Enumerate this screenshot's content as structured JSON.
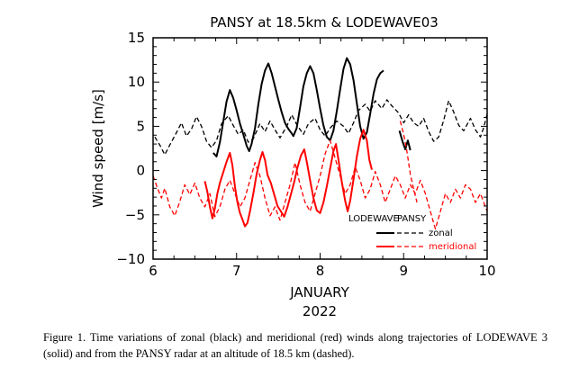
{
  "chart_data": {
    "type": "line",
    "title": "PANSY at 18.5km & LODEWAVE03",
    "xlabel": "JANUARY",
    "xlabel2": "2022",
    "ylabel": "Wind speed [m/s]",
    "xlim": [
      6,
      10
    ],
    "ylim": [
      -10,
      15
    ],
    "xticks": [
      6,
      7,
      8,
      9,
      10
    ],
    "yticks": [
      15,
      10,
      5,
      0,
      -5,
      -10
    ],
    "xtick_labels": [
      "6",
      "7",
      "8",
      "9",
      "10"
    ],
    "ytick_labels": [
      "15",
      "10",
      "5",
      "0",
      "−5",
      "−10"
    ],
    "legend": {
      "header_solid": "LODEWAVE",
      "header_dashed": "PANSY",
      "entries": [
        {
          "label": "zonal",
          "color": "#000000"
        },
        {
          "label": "meridional",
          "color": "#ff0000"
        }
      ]
    },
    "series": [
      {
        "source": "LODEWAVE",
        "component": "zonal",
        "color": "#000000",
        "style": "solid",
        "points": [
          [
            6.72,
            2.0
          ],
          [
            6.76,
            1.6
          ],
          [
            6.8,
            3.2
          ],
          [
            6.84,
            5.5
          ],
          [
            6.88,
            7.8
          ],
          [
            6.92,
            9.1
          ],
          [
            6.96,
            8.2
          ],
          [
            7.0,
            6.8
          ],
          [
            7.04,
            5.3
          ],
          [
            7.08,
            4.1
          ],
          [
            7.12,
            2.8
          ],
          [
            7.15,
            2.2
          ],
          [
            7.18,
            3.0
          ],
          [
            7.22,
            4.8
          ],
          [
            7.26,
            7.5
          ],
          [
            7.3,
            9.8
          ],
          [
            7.34,
            11.3
          ],
          [
            7.38,
            12.1
          ],
          [
            7.42,
            11.0
          ],
          [
            7.46,
            9.5
          ],
          [
            7.5,
            8.0
          ],
          [
            7.54,
            6.6
          ],
          [
            7.58,
            5.4
          ],
          [
            7.62,
            4.7
          ],
          [
            7.66,
            4.2
          ],
          [
            7.68,
            3.9
          ],
          [
            7.72,
            4.8
          ],
          [
            7.76,
            7.1
          ],
          [
            7.8,
            9.5
          ],
          [
            7.84,
            11.0
          ],
          [
            7.88,
            11.8
          ],
          [
            7.92,
            11.0
          ],
          [
            7.96,
            9.1
          ],
          [
            8.0,
            7.0
          ],
          [
            8.04,
            5.1
          ],
          [
            8.08,
            3.8
          ],
          [
            8.12,
            3.4
          ],
          [
            8.16,
            4.5
          ],
          [
            8.2,
            6.7
          ],
          [
            8.24,
            9.2
          ],
          [
            8.28,
            11.5
          ],
          [
            8.32,
            12.7
          ],
          [
            8.36,
            12.0
          ],
          [
            8.4,
            10.2
          ],
          [
            8.44,
            7.6
          ],
          [
            8.48,
            5.0
          ],
          [
            8.52,
            3.6
          ],
          [
            8.56,
            4.3
          ],
          [
            8.6,
            6.4
          ],
          [
            8.64,
            8.7
          ],
          [
            8.68,
            10.3
          ],
          [
            8.72,
            11.0
          ],
          [
            8.76,
            11.3
          ]
        ]
      },
      {
        "source": "LODEWAVE",
        "component": "zonal",
        "color": "#000000",
        "style": "solid",
        "points": [
          [
            8.95,
            4.5
          ],
          [
            8.99,
            3.2
          ],
          [
            9.02,
            2.4
          ],
          [
            9.05,
            3.4
          ],
          [
            9.08,
            2.3
          ]
        ]
      },
      {
        "source": "PANSY",
        "component": "zonal",
        "color": "#000000",
        "style": "dashed",
        "points": [
          [
            6.02,
            3.8
          ],
          [
            6.08,
            2.9
          ],
          [
            6.14,
            1.8
          ],
          [
            6.2,
            2.9
          ],
          [
            6.28,
            4.3
          ],
          [
            6.34,
            5.4
          ],
          [
            6.4,
            3.9
          ],
          [
            6.46,
            4.7
          ],
          [
            6.52,
            6.1
          ],
          [
            6.58,
            5.0
          ],
          [
            6.64,
            3.3
          ],
          [
            6.7,
            2.6
          ],
          [
            6.76,
            3.4
          ],
          [
            6.82,
            5.3
          ],
          [
            6.9,
            6.2
          ],
          [
            6.96,
            5.1
          ],
          [
            7.02,
            4.1
          ],
          [
            7.08,
            4.6
          ],
          [
            7.14,
            3.2
          ],
          [
            7.2,
            3.6
          ],
          [
            7.28,
            5.3
          ],
          [
            7.34,
            4.4
          ],
          [
            7.4,
            5.6
          ],
          [
            7.46,
            4.6
          ],
          [
            7.52,
            3.7
          ],
          [
            7.6,
            5.0
          ],
          [
            7.66,
            6.3
          ],
          [
            7.72,
            5.2
          ],
          [
            7.8,
            4.1
          ],
          [
            7.86,
            5.3
          ],
          [
            7.94,
            5.9
          ],
          [
            8.0,
            4.6
          ],
          [
            8.06,
            3.9
          ],
          [
            8.12,
            4.8
          ],
          [
            8.2,
            5.6
          ],
          [
            8.28,
            5.0
          ],
          [
            8.34,
            4.2
          ],
          [
            8.4,
            5.4
          ],
          [
            8.46,
            6.8
          ],
          [
            8.54,
            7.5
          ],
          [
            8.6,
            6.7
          ],
          [
            8.66,
            7.9
          ],
          [
            8.74,
            7.0
          ],
          [
            8.8,
            8.0
          ],
          [
            8.86,
            7.3
          ],
          [
            8.94,
            6.5
          ],
          [
            9.0,
            5.4
          ],
          [
            9.06,
            6.3
          ],
          [
            9.12,
            5.4
          ],
          [
            9.18,
            5.0
          ],
          [
            9.24,
            5.9
          ],
          [
            9.3,
            4.4
          ],
          [
            9.36,
            3.3
          ],
          [
            9.42,
            3.8
          ],
          [
            9.48,
            5.7
          ],
          [
            9.54,
            7.9
          ],
          [
            9.6,
            6.6
          ],
          [
            9.66,
            5.1
          ],
          [
            9.72,
            4.5
          ],
          [
            9.8,
            5.9
          ],
          [
            9.86,
            4.6
          ],
          [
            9.92,
            3.8
          ],
          [
            9.96,
            4.9
          ],
          [
            10.0,
            6.4
          ]
        ]
      },
      {
        "source": "LODEWAVE",
        "component": "meridional",
        "color": "#ff0000",
        "style": "solid",
        "points": [
          [
            6.62,
            -1.2
          ],
          [
            6.65,
            -2.4
          ],
          [
            6.68,
            -4.1
          ],
          [
            6.71,
            -5.4
          ],
          [
            6.74,
            -4.3
          ],
          [
            6.77,
            -2.6
          ],
          [
            6.8,
            -1.4
          ],
          [
            6.84,
            -0.2
          ],
          [
            6.88,
            1.0
          ],
          [
            6.92,
            2.0
          ],
          [
            6.95,
            0.6
          ],
          [
            6.98,
            -1.8
          ],
          [
            7.01,
            -3.6
          ],
          [
            7.04,
            -4.8
          ],
          [
            7.07,
            -5.5
          ],
          [
            7.1,
            -6.3
          ],
          [
            7.13,
            -5.9
          ],
          [
            7.16,
            -4.6
          ],
          [
            7.2,
            -2.6
          ],
          [
            7.24,
            -0.4
          ],
          [
            7.28,
            1.2
          ],
          [
            7.31,
            2.1
          ],
          [
            7.34,
            1.2
          ],
          [
            7.37,
            -0.5
          ],
          [
            7.41,
            -1.4
          ],
          [
            7.45,
            -2.7
          ],
          [
            7.49,
            -4.0
          ],
          [
            7.53,
            -4.6
          ],
          [
            7.57,
            -5.2
          ],
          [
            7.61,
            -4.1
          ],
          [
            7.65,
            -2.7
          ],
          [
            7.69,
            -1.3
          ],
          [
            7.73,
            0.4
          ],
          [
            7.77,
            1.7
          ],
          [
            7.81,
            2.4
          ],
          [
            7.84,
            1.0
          ],
          [
            7.88,
            -1.1
          ],
          [
            7.92,
            -3.1
          ],
          [
            7.96,
            -4.5
          ],
          [
            8.0,
            -4.8
          ],
          [
            8.04,
            -3.6
          ],
          [
            8.08,
            -1.8
          ],
          [
            8.12,
            0.2
          ],
          [
            8.16,
            2.2
          ],
          [
            8.19,
            3.0
          ],
          [
            8.22,
            1.2
          ],
          [
            8.26,
            -1.3
          ],
          [
            8.3,
            -3.4
          ],
          [
            8.33,
            -4.6
          ],
          [
            8.36,
            -3.4
          ],
          [
            8.4,
            -1.0
          ],
          [
            8.44,
            1.6
          ],
          [
            8.48,
            3.6
          ],
          [
            8.52,
            4.6
          ],
          [
            8.56,
            3.4
          ],
          [
            8.59,
            1.2
          ],
          [
            8.62,
            0.1
          ]
        ]
      },
      {
        "source": "PANSY",
        "component": "meridional",
        "color": "#ff0000",
        "style": "dashed",
        "points": [
          [
            6.0,
            -0.6
          ],
          [
            6.05,
            -1.9
          ],
          [
            6.1,
            -3.1
          ],
          [
            6.14,
            -2.0
          ],
          [
            6.2,
            -4.1
          ],
          [
            6.26,
            -5.1
          ],
          [
            6.32,
            -3.5
          ],
          [
            6.38,
            -1.6
          ],
          [
            6.44,
            -2.7
          ],
          [
            6.5,
            -1.4
          ],
          [
            6.56,
            -3.1
          ],
          [
            6.62,
            -4.1
          ],
          [
            6.68,
            -2.6
          ],
          [
            6.74,
            -5.2
          ],
          [
            6.8,
            -4.1
          ],
          [
            6.86,
            -2.1
          ],
          [
            6.92,
            -1.1
          ],
          [
            6.98,
            -2.6
          ],
          [
            7.04,
            -4.1
          ],
          [
            7.1,
            -3.1
          ],
          [
            7.16,
            -1.1
          ],
          [
            7.22,
            0.9
          ],
          [
            7.28,
            -0.6
          ],
          [
            7.34,
            -3.1
          ],
          [
            7.4,
            -5.1
          ],
          [
            7.46,
            -4.1
          ],
          [
            7.52,
            -5.6
          ],
          [
            7.58,
            -3.6
          ],
          [
            7.64,
            -1.6
          ],
          [
            7.7,
            0.9
          ],
          [
            7.76,
            -1.6
          ],
          [
            7.82,
            -3.6
          ],
          [
            7.88,
            -4.6
          ],
          [
            7.94,
            -2.6
          ],
          [
            8.0,
            -0.6
          ],
          [
            8.06,
            1.9
          ],
          [
            8.12,
            3.4
          ],
          [
            8.18,
            1.4
          ],
          [
            8.24,
            -0.6
          ],
          [
            8.3,
            -2.6
          ],
          [
            8.36,
            -1.6
          ],
          [
            8.42,
            0.4
          ],
          [
            8.48,
            -1.1
          ],
          [
            8.54,
            -3.1
          ],
          [
            8.6,
            -2.1
          ],
          [
            8.66,
            -0.1
          ],
          [
            8.72,
            -1.6
          ],
          [
            8.78,
            -3.6
          ],
          [
            8.84,
            -2.1
          ],
          [
            8.9,
            -0.6
          ],
          [
            8.96,
            -1.6
          ],
          [
            9.02,
            -3.1
          ],
          [
            9.08,
            -1.6
          ],
          [
            9.14,
            -2.6
          ],
          [
            9.2,
            -1.1
          ],
          [
            9.26,
            -2.6
          ],
          [
            9.32,
            -4.6
          ],
          [
            9.38,
            -6.6
          ],
          [
            9.44,
            -4.6
          ],
          [
            9.5,
            -2.6
          ],
          [
            9.56,
            -3.6
          ],
          [
            9.62,
            -2.1
          ],
          [
            9.68,
            -3.1
          ],
          [
            9.74,
            -1.6
          ],
          [
            9.8,
            -2.1
          ],
          [
            9.86,
            -3.6
          ],
          [
            9.92,
            -2.6
          ],
          [
            9.98,
            -4.1
          ],
          [
            10.0,
            -4.6
          ]
        ]
      },
      {
        "source": "PANSY",
        "component": "meridional",
        "color": "#ff0000",
        "style": "dashed",
        "points": [
          [
            8.96,
            5.6
          ],
          [
            9.0,
            4.1
          ],
          [
            9.04,
            2.1
          ],
          [
            9.08,
            -0.4
          ],
          [
            9.12,
            -2.1
          ],
          [
            9.16,
            -3.6
          ]
        ]
      }
    ]
  },
  "caption": "Figure 1. Time variations of zonal (black) and meridional (red) winds along trajectories of LODEWAVE 3 (solid) and from the PANSY radar at an altitude of 18.5 km (dashed)."
}
